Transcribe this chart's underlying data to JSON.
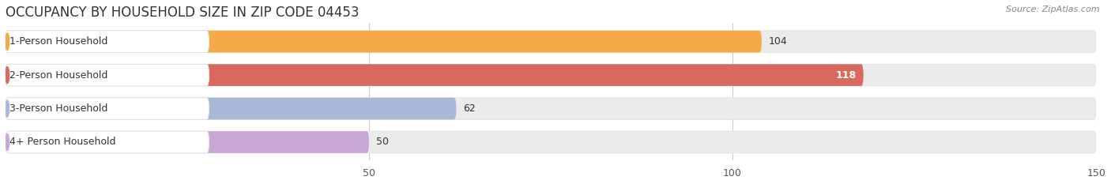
{
  "title": "OCCUPANCY BY HOUSEHOLD SIZE IN ZIP CODE 04453",
  "source": "Source: ZipAtlas.com",
  "categories": [
    "1-Person Household",
    "2-Person Household",
    "3-Person Household",
    "4+ Person Household"
  ],
  "values": [
    104,
    118,
    62,
    50
  ],
  "bar_colors": [
    "#f5a947",
    "#d9695f",
    "#a8b8d8",
    "#c9a8d8"
  ],
  "label_colors": [
    "#333333",
    "#ffffff",
    "#333333",
    "#333333"
  ],
  "xlim": [
    0,
    150
  ],
  "xticks": [
    50,
    100,
    150
  ],
  "background_color": "#ffffff",
  "bar_bg_color": "#ebebeb",
  "bar_height": 0.65,
  "title_fontsize": 12,
  "source_fontsize": 8,
  "label_fontsize": 9,
  "value_fontsize": 9,
  "tick_fontsize": 9,
  "figsize": [
    14.06,
    2.33
  ],
  "dpi": 100
}
